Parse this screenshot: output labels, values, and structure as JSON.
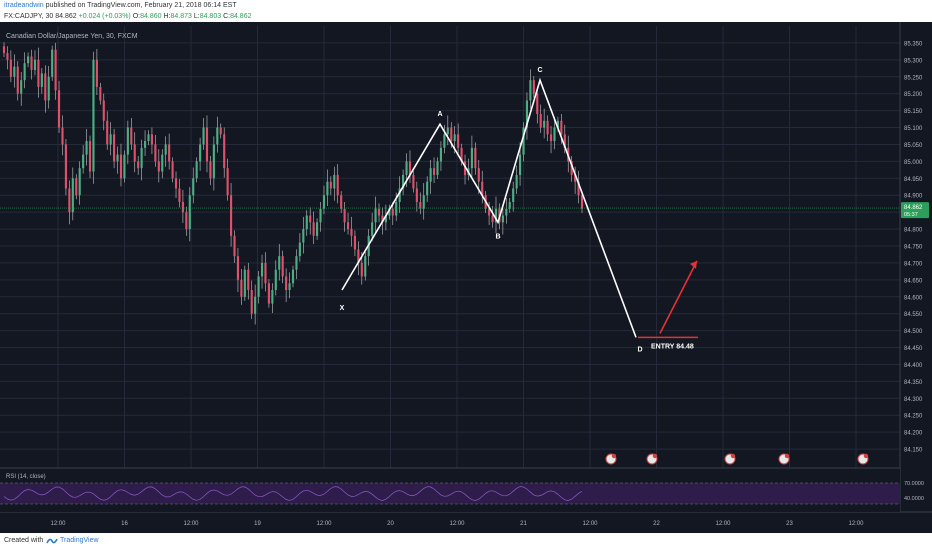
{
  "header": {
    "author": "itradeandwin",
    "published": "published on TradingView.com, February 21, 2018 06:14 EST",
    "symbol": "FX:CADJPY, 30",
    "last": "84.862",
    "change": "+0.024 (+0.03%)",
    "o_label": "O:",
    "o_value": "84.860",
    "h_label": "H:",
    "h_value": "84.873",
    "l_label": "L:",
    "l_value": "84.803",
    "c_label": "C:",
    "c_value": "84.862"
  },
  "chart_data": {
    "type": "candlestick",
    "title": "Canadian Dollar/Japanese Yen, 30, FXCM",
    "ylim": [
      84.1,
      85.4
    ],
    "y_ticks": [
      "85.350",
      "85.300",
      "85.250",
      "85.200",
      "85.150",
      "85.100",
      "85.050",
      "85.000",
      "84.950",
      "84.900",
      "84.850",
      "84.800",
      "84.750",
      "84.700",
      "84.650",
      "84.600",
      "84.550",
      "84.500",
      "84.450",
      "84.400",
      "84.350",
      "84.300",
      "84.250",
      "84.200",
      "84.150"
    ],
    "x_ticks": [
      "12:00",
      "16",
      "12:00",
      "19",
      "12:00",
      "20",
      "12:00",
      "21",
      "12:00",
      "22",
      "12:00",
      "23",
      "12:00"
    ],
    "price_label": {
      "price": "84.862",
      "value": "84.862",
      "sub": "05:37"
    },
    "close_series": [
      85.32,
      85.3,
      85.25,
      85.28,
      85.2,
      85.24,
      85.29,
      85.31,
      85.27,
      85.3,
      85.22,
      85.26,
      85.18,
      85.25,
      85.33,
      85.21,
      85.1,
      85.05,
      84.92,
      84.85,
      84.95,
      84.9,
      84.98,
      85.02,
      85.06,
      84.97,
      85.3,
      85.22,
      85.18,
      85.12,
      85.05,
      85.08,
      85.0,
      85.02,
      84.95,
      85.02,
      85.1,
      85.05,
      85.0,
      84.98,
      85.04,
      85.06,
      85.08,
      85.05,
      85.0,
      84.97,
      85.02,
      85.05,
      85.0,
      84.95,
      84.92,
      84.88,
      84.85,
      84.8,
      84.9,
      84.95,
      85.0,
      85.05,
      85.1,
      85.0,
      84.95,
      85.05,
      85.1,
      85.08,
      84.98,
      84.9,
      84.78,
      84.72,
      84.65,
      84.6,
      84.68,
      84.62,
      84.55,
      84.6,
      84.66,
      84.7,
      84.64,
      84.58,
      84.62,
      84.68,
      84.72,
      84.66,
      84.62,
      84.64,
      84.68,
      84.72,
      84.76,
      84.8,
      84.84,
      84.82,
      84.78,
      84.82,
      84.86,
      84.9,
      84.94,
      84.92,
      84.96,
      84.9,
      84.86,
      84.82,
      84.8,
      84.78,
      84.74,
      84.7,
      84.66,
      84.72,
      84.78,
      84.82,
      84.86,
      84.84,
      84.82,
      84.84,
      84.86,
      84.84,
      84.88,
      84.92,
      84.96,
      85.0,
      84.96,
      84.92,
      84.88,
      84.86,
      84.9,
      84.94,
      84.98,
      84.96,
      85.0,
      85.04,
      85.08,
      85.1,
      85.06,
      85.08,
      85.04,
      85.0,
      84.96,
      84.98,
      85.04,
      84.98,
      84.94,
      84.9,
      84.86,
      84.84,
      84.82,
      84.86,
      84.82,
      84.84,
      84.86,
      84.88,
      84.92,
      84.96,
      85.02,
      85.1,
      85.18,
      85.24,
      85.2,
      85.14,
      85.1,
      85.12,
      85.08,
      85.06,
      85.1,
      85.12,
      85.08,
      85.04,
      85.0,
      84.96,
      84.94,
      84.9,
      84.86
    ],
    "pattern": {
      "points": [
        {
          "label": "X",
          "x_label_text": "X",
          "price": 84.62
        },
        {
          "label": "A",
          "price": 85.11
        },
        {
          "label": "B",
          "price": 84.82
        },
        {
          "label": "C",
          "price": 85.24
        },
        {
          "label": "D",
          "price": 84.48
        }
      ],
      "entry_text": "ENTRY 84.48",
      "entry_price": 84.48
    },
    "indicator": {
      "title": "RSI (14, close)",
      "level_label": "40.0000",
      "upper_label": "70.0000"
    }
  },
  "footer": {
    "created_with": "Created with",
    "brand": "TradingView"
  },
  "colors": {
    "background": "#131722",
    "grid": "#242a3a",
    "candle_up": "#4caf84",
    "candle_down": "#e0506a",
    "wick": "#c8c8c8",
    "pattern_line": "#ffffff",
    "entry_line": "#e83030",
    "arrow": "#e83030",
    "price_tag": "#2e9e5b",
    "rsi_fill": "#3a1f5c",
    "rsi_line": "#8e5cc8"
  }
}
